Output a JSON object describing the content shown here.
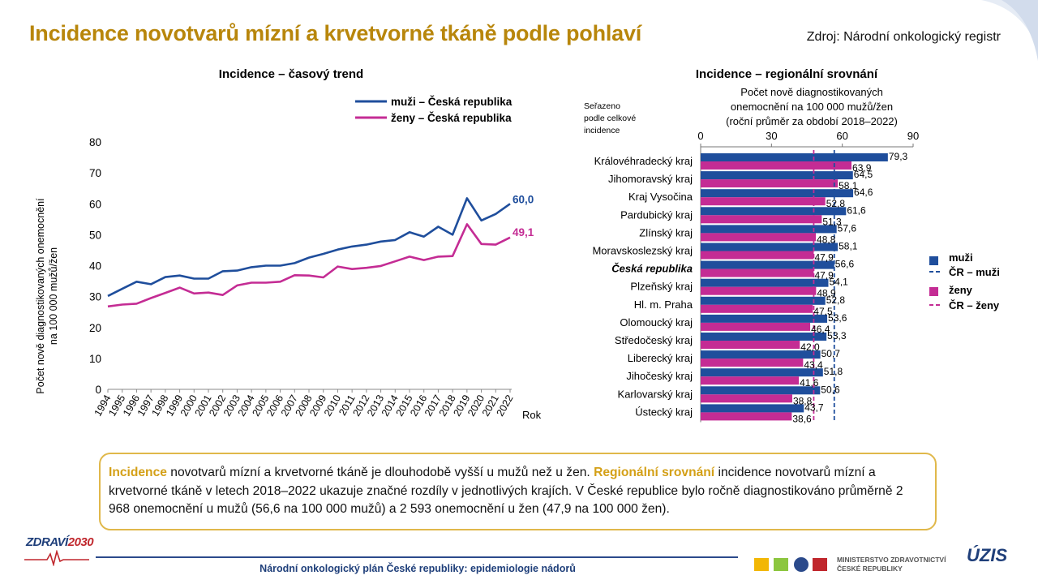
{
  "page": {
    "title": "Incidence novotvarů mízní a krvetvorné tkáně podle pohlaví",
    "source": "Zdroj: Národní onkologický registr",
    "footer": "Národní onkologický plán České republiky: epidemiologie nádorů",
    "logo_left_a": "ZDRAVÍ",
    "logo_left_b": "2030",
    "ministry_line1": "MINISTERSTVO ZDRAVOTNICTVÍ",
    "ministry_line2": "ČESKÉ REPUBLIKY",
    "uzis": "ÚZIS"
  },
  "summary": {
    "hl1": "Incidence",
    "t1": " novotvarů mízní a krvetvorné tkáně je dlouhodobě vyšší u mužů než u žen. ",
    "hl2": "Regionální srovnání",
    "t2": " incidence novotvarů mízní a krvetvorné tkáně v letech 2018–2022 ukazuje značné rozdíly v jednotlivých krajích. V České republice bylo ročně diagnostikováno průměrně 2 968 onemocnění u mužů (56,6 na 100 000 mužů) a 2 593 onemocnění u žen (47,9 na 100 000 žen)."
  },
  "colors": {
    "men": "#1f4e9c",
    "women": "#c42c94",
    "title": "#b8860b",
    "highlight": "#d4a017",
    "box_border": "#e0b84a"
  },
  "chart_data": [
    {
      "type": "line",
      "title": "Incidence – časový trend",
      "xlabel": "Rok",
      "ylabel": "Počet nově diagnostikovaných onemocnění na 100 000 mužů/žen",
      "ylabel_lines": [
        "Počet nově diagnostikovaných onemocnění",
        "na 100 000 mužů/žen"
      ],
      "ylim": [
        0,
        80
      ],
      "yticks": [
        0,
        10,
        20,
        30,
        40,
        50,
        60,
        70,
        80
      ],
      "x": [
        "1994",
        "1995",
        "1996",
        "1997",
        "1998",
        "1999",
        "2000",
        "2001",
        "2002",
        "2003",
        "2004",
        "2005",
        "2006",
        "2007",
        "2008",
        "2009",
        "2010",
        "2011",
        "2012",
        "2013",
        "2014",
        "2015",
        "2016",
        "2017",
        "2018",
        "2019",
        "2020",
        "2021",
        "2022"
      ],
      "series": [
        {
          "name": "muži – Česká republika",
          "color": "#1f4e9c",
          "end_label": "60,0",
          "values": [
            30.2,
            32.5,
            34.8,
            34.0,
            36.3,
            36.8,
            35.8,
            35.8,
            38.2,
            38.4,
            39.5,
            40.0,
            40.0,
            40.8,
            42.6,
            43.8,
            45.2,
            46.2,
            46.8,
            47.8,
            48.3,
            50.8,
            49.4,
            52.6,
            50.0,
            61.8,
            54.6,
            56.7,
            60.0
          ]
        },
        {
          "name": "ženy – Česká republika",
          "color": "#c42c94",
          "end_label": "49,1",
          "values": [
            26.8,
            27.4,
            27.7,
            29.5,
            31.2,
            32.9,
            31.0,
            31.3,
            30.5,
            33.6,
            34.5,
            34.5,
            34.8,
            36.9,
            36.8,
            36.2,
            39.7,
            38.9,
            39.3,
            39.9,
            41.4,
            42.9,
            41.8,
            42.9,
            43.1,
            53.4,
            47.0,
            46.8,
            49.1
          ]
        }
      ],
      "legend": "top-right"
    },
    {
      "type": "bar",
      "orientation": "horizontal",
      "title": "Incidence – regionální srovnání",
      "subtitle_lines": [
        "Počet nově diagnostikovaných",
        "onemocnění  na 100 000 mužů/žen",
        "(roční průměr  za období 2018–2022)"
      ],
      "sort_note": [
        "Seřazeno",
        "podle celkové",
        "incidence"
      ],
      "xlim": [
        0,
        90
      ],
      "xticks": [
        "0",
        "30",
        "60",
        "90"
      ],
      "categories": [
        "Královéhradecký kraj",
        "Jihomoravský kraj",
        "Kraj Vysočina",
        "Pardubický kraj",
        "Zlínský kraj",
        "Moravskoslezský kraj",
        "Česká republika",
        "Plzeňský kraj",
        "Hl. m. Praha",
        "Olomoucký kraj",
        "Středočeský kraj",
        "Liberecký kraj",
        "Jihočeský kraj",
        "Karlovarský kraj",
        "Ústecký kraj"
      ],
      "emphasized_category": "Česká republika",
      "series": [
        {
          "name": "muži",
          "color": "#1f4e9c",
          "values": [
            79.3,
            64.5,
            64.6,
            61.6,
            57.6,
            58.1,
            56.6,
            54.1,
            52.8,
            53.6,
            53.3,
            50.7,
            51.8,
            50.6,
            43.7
          ],
          "labels": [
            "79,3",
            "64,5",
            "64,6",
            "61,6",
            "57,6",
            "58,1",
            "56,6",
            "54,1",
            "52,8",
            "53,6",
            "53,3",
            "50,7",
            "51,8",
            "50,6",
            "43,7"
          ]
        },
        {
          "name": "ženy",
          "color": "#c42c94",
          "values": [
            63.9,
            58.1,
            52.8,
            51.3,
            48.8,
            47.9,
            47.9,
            48.9,
            47.5,
            46.4,
            42.0,
            43.4,
            41.6,
            38.8,
            38.6
          ],
          "labels": [
            "63,9",
            "58,1",
            "52,8",
            "51,3",
            "48,8",
            "47,9",
            "47,9",
            "48,9",
            "47,5",
            "46,4",
            "42,0",
            "43,4",
            "41,6",
            "38,8",
            "38,6"
          ]
        }
      ],
      "reference_lines": [
        {
          "name": "ČR – muži",
          "value": 56.6,
          "color": "#1f4e9c"
        },
        {
          "name": "ČR – ženy",
          "value": 47.9,
          "color": "#c42c94"
        }
      ],
      "legend": "right"
    }
  ]
}
